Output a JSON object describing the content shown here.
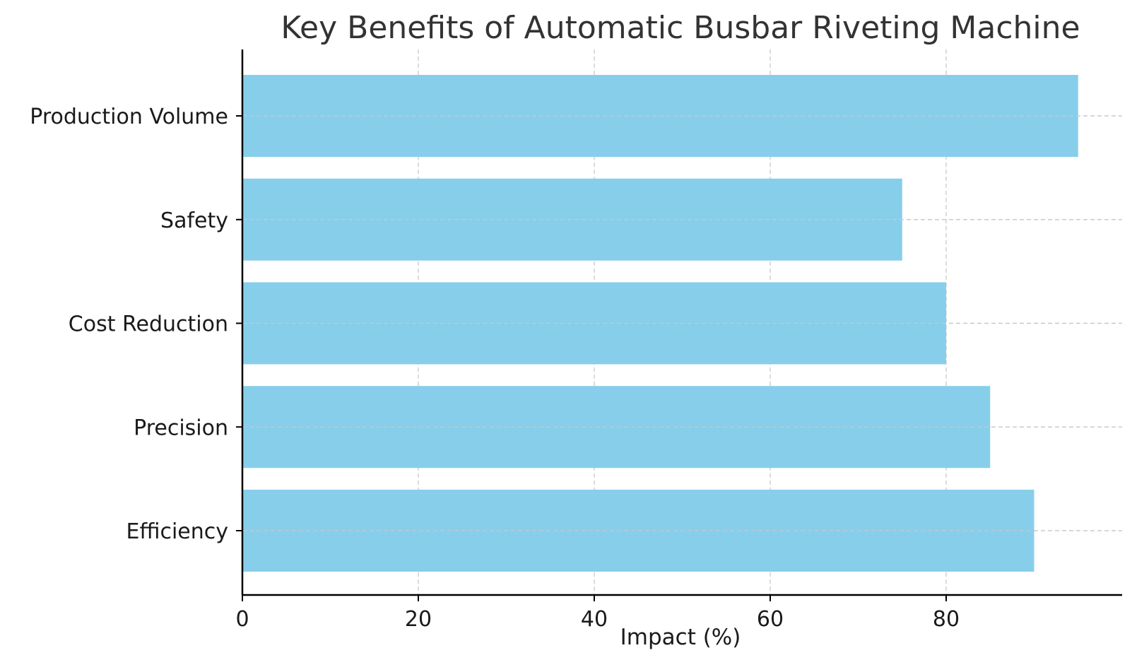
{
  "chart_data": {
    "type": "bar",
    "orientation": "horizontal",
    "title": "Key Benefits of Automatic Busbar Riveting Machine",
    "xlabel": "Impact (%)",
    "ylabel": "",
    "categories": [
      "Efficiency",
      "Precision",
      "Cost Reduction",
      "Safety",
      "Production Volume"
    ],
    "values": [
      90,
      85,
      80,
      75,
      95
    ],
    "xlim": [
      0,
      100
    ],
    "xticks": [
      0,
      20,
      40,
      60,
      80
    ],
    "grid": true,
    "grid_style": "dashed",
    "bar_color": "#87CEEB",
    "grid_color": "#c8c8c8",
    "axis_color": "#000000",
    "text_color": "#333333"
  }
}
